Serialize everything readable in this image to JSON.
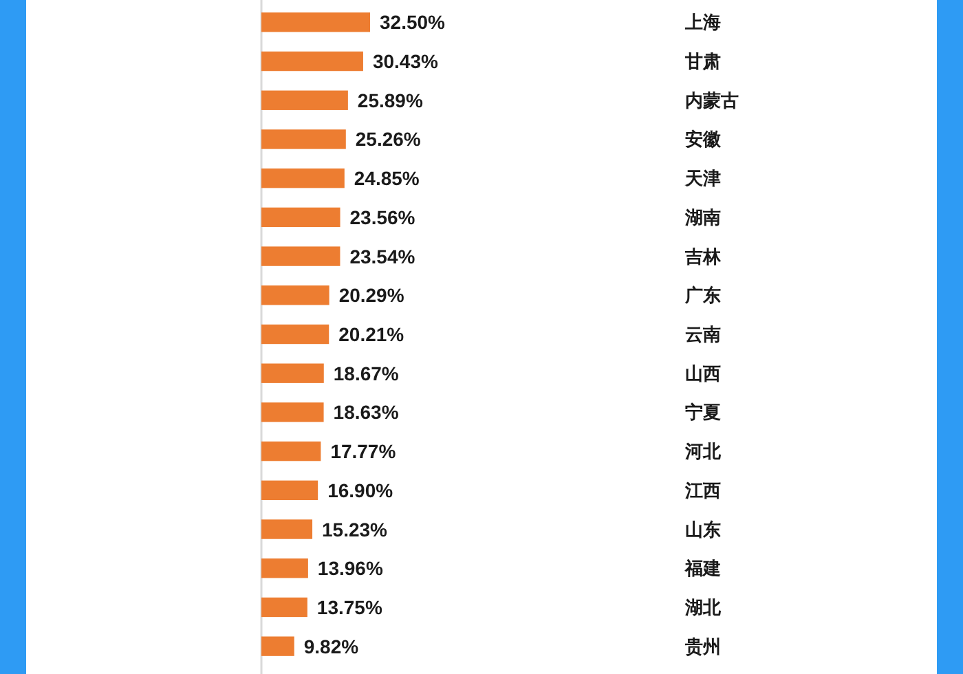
{
  "chart_data": {
    "type": "bar",
    "orientation": "horizontal",
    "categories": [
      "上海",
      "甘肃",
      "内蒙古",
      "安徽",
      "天津",
      "湖南",
      "吉林",
      "广东",
      "云南",
      "山西",
      "宁夏",
      "河北",
      "江西",
      "山东",
      "福建",
      "湖北",
      "贵州"
    ],
    "values": [
      32.5,
      30.43,
      25.89,
      25.26,
      24.85,
      23.56,
      23.54,
      20.29,
      20.21,
      18.67,
      18.63,
      17.77,
      16.9,
      15.23,
      13.96,
      13.75,
      9.82
    ],
    "value_labels": [
      "32.50%",
      "30.43%",
      "25.89%",
      "25.26%",
      "24.85%",
      "23.56%",
      "23.54%",
      "20.29%",
      "20.21%",
      "18.67%",
      "18.63%",
      "17.77%",
      "16.90%",
      "15.23%",
      "13.96%",
      "13.75%",
      "9.82%"
    ],
    "color": "#ed7d31"
  }
}
